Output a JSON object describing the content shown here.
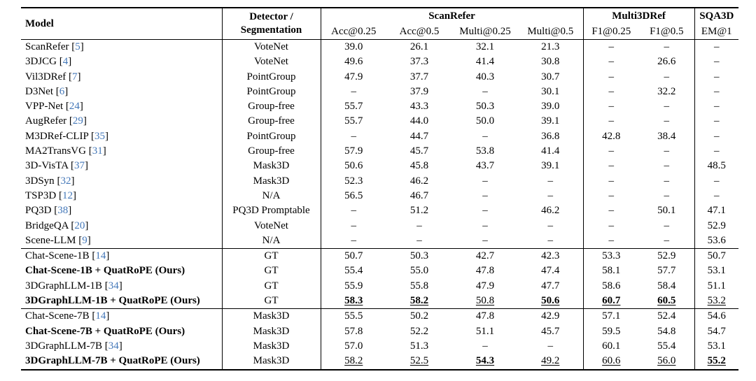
{
  "colors": {
    "text": "#000000",
    "citation_link": "#4377b8",
    "rule": "#000000",
    "background": "#ffffff"
  },
  "table": {
    "headers": {
      "model": "Model",
      "detector_line1": "Detector /",
      "detector_line2": "Segmentation"
    },
    "groups": [
      {
        "label": "ScanRefer",
        "span": 4
      },
      {
        "label": "Multi3DRef",
        "span": 2
      },
      {
        "label": "SQA3D",
        "span": 1
      }
    ],
    "subheaders": [
      "Acc@0.25",
      "Acc@0.5",
      "Multi@0.25",
      "Multi@0.5",
      "F1@0.25",
      "F1@0.5",
      "EM@1"
    ],
    "dash": "–",
    "sections": [
      {
        "rows": [
          {
            "model": "ScanRefer",
            "cite": "5",
            "bold": false,
            "detector": "VoteNet",
            "values": [
              "39.0",
              "26.1",
              "32.1",
              "21.3",
              "–",
              "–",
              "–"
            ]
          },
          {
            "model": "3DJCG",
            "cite": "4",
            "bold": false,
            "detector": "VoteNet",
            "values": [
              "49.6",
              "37.3",
              "41.4",
              "30.8",
              "–",
              "26.6",
              "–"
            ]
          },
          {
            "model": "Vil3DRef",
            "cite": "7",
            "bold": false,
            "detector": "PointGroup",
            "values": [
              "47.9",
              "37.7",
              "40.3",
              "30.7",
              "–",
              "–",
              "–"
            ]
          },
          {
            "model": "D3Net",
            "cite": "6",
            "bold": false,
            "detector": "PointGroup",
            "values": [
              "–",
              "37.9",
              "–",
              "30.1",
              "–",
              "32.2",
              "–"
            ]
          },
          {
            "model": "VPP-Net",
            "cite": "24",
            "bold": false,
            "detector": "Group-free",
            "values": [
              "55.7",
              "43.3",
              "50.3",
              "39.0",
              "–",
              "–",
              "–"
            ]
          },
          {
            "model": "AugRefer",
            "cite": "29",
            "bold": false,
            "detector": "Group-free",
            "values": [
              "55.7",
              "44.0",
              "50.0",
              "39.1",
              "–",
              "–",
              "–"
            ]
          },
          {
            "model": "M3DRef-CLIP",
            "cite": "35",
            "bold": false,
            "detector": "PointGroup",
            "values": [
              "–",
              "44.7",
              "–",
              "36.8",
              "42.8",
              "38.4",
              "–"
            ]
          },
          {
            "model": "MA2TransVG",
            "cite": "31",
            "bold": false,
            "detector": "Group-free",
            "values": [
              "57.9",
              "45.7",
              "53.8",
              "41.4",
              "–",
              "–",
              "–"
            ]
          },
          {
            "model": "3D-VisTA",
            "cite": "37",
            "bold": false,
            "detector": "Mask3D",
            "values": [
              "50.6",
              "45.8",
              "43.7",
              "39.1",
              "–",
              "–",
              "48.5"
            ]
          },
          {
            "model": "3DSyn",
            "cite": "32",
            "bold": false,
            "detector": "Mask3D",
            "values": [
              "52.3",
              "46.2",
              "–",
              "–",
              "–",
              "–",
              "–"
            ]
          },
          {
            "model": "TSP3D",
            "cite": "12",
            "bold": false,
            "detector": "N/A",
            "values": [
              "56.5",
              "46.7",
              "–",
              "–",
              "–",
              "–",
              "–"
            ]
          },
          {
            "model": "PQ3D",
            "cite": "38",
            "bold": false,
            "detector": "PQ3D Promptable",
            "values": [
              "–",
              "51.2",
              "–",
              "46.2",
              "–",
              "50.1",
              "47.1"
            ]
          },
          {
            "model": "BridgeQA",
            "cite": "20",
            "bold": false,
            "detector": "VoteNet",
            "values": [
              "–",
              "–",
              "–",
              "–",
              "–",
              "–",
              "52.9"
            ]
          },
          {
            "model": "Scene-LLM",
            "cite": "9",
            "bold": false,
            "detector": "N/A",
            "values": [
              "–",
              "–",
              "–",
              "–",
              "–",
              "–",
              "53.6"
            ]
          }
        ]
      },
      {
        "rows": [
          {
            "model": "Chat-Scene-1B",
            "cite": "14",
            "bold": false,
            "detector": "GT",
            "values": [
              "50.7",
              "50.3",
              "42.7",
              "42.3",
              "53.3",
              "52.9",
              "50.7"
            ]
          },
          {
            "model": "Chat-Scene-1B + QuatRoPE (Ours)",
            "cite": null,
            "bold": true,
            "detector": "GT",
            "values": [
              "55.4",
              "55.0",
              "47.8",
              "47.4",
              "58.1",
              "57.7",
              "53.1"
            ]
          },
          {
            "model": "3DGraphLLM-1B",
            "cite": "34",
            "bold": false,
            "detector": "GT",
            "values": [
              "55.9",
              "55.8",
              "47.9",
              "47.7",
              "58.6",
              "58.4",
              "51.1"
            ]
          },
          {
            "model": "3DGraphLLM-1B + QuatRoPE (Ours)",
            "cite": null,
            "bold": true,
            "detector": "GT",
            "values": [
              "58.3",
              "58.2",
              "50.8",
              "50.6",
              "60.7",
              "60.5",
              "53.2"
            ],
            "fmt": [
              "bu",
              "bu",
              "u",
              "bu",
              "bu",
              "bu",
              "u"
            ]
          }
        ]
      },
      {
        "rows": [
          {
            "model": "Chat-Scene-7B",
            "cite": "14",
            "bold": false,
            "detector": "Mask3D",
            "values": [
              "55.5",
              "50.2",
              "47.8",
              "42.9",
              "57.1",
              "52.4",
              "54.6"
            ]
          },
          {
            "model": "Chat-Scene-7B + QuatRoPE (Ours)",
            "cite": null,
            "bold": true,
            "detector": "Mask3D",
            "values": [
              "57.8",
              "52.2",
              "51.1",
              "45.7",
              "59.5",
              "54.8",
              "54.7"
            ]
          },
          {
            "model": "3DGraphLLM-7B",
            "cite": "34",
            "bold": false,
            "detector": "Mask3D",
            "values": [
              "57.0",
              "51.3",
              "–",
              "–",
              "60.1",
              "55.4",
              "53.1"
            ]
          },
          {
            "model": "3DGraphLLM-7B + QuatRoPE (Ours)",
            "cite": null,
            "bold": true,
            "detector": "Mask3D",
            "values": [
              "58.2",
              "52.5",
              "54.3",
              "49.2",
              "60.6",
              "56.0",
              "55.2"
            ],
            "fmt": [
              "u",
              "u",
              "bu",
              "u",
              "u",
              "u",
              "bu"
            ]
          }
        ]
      }
    ]
  }
}
